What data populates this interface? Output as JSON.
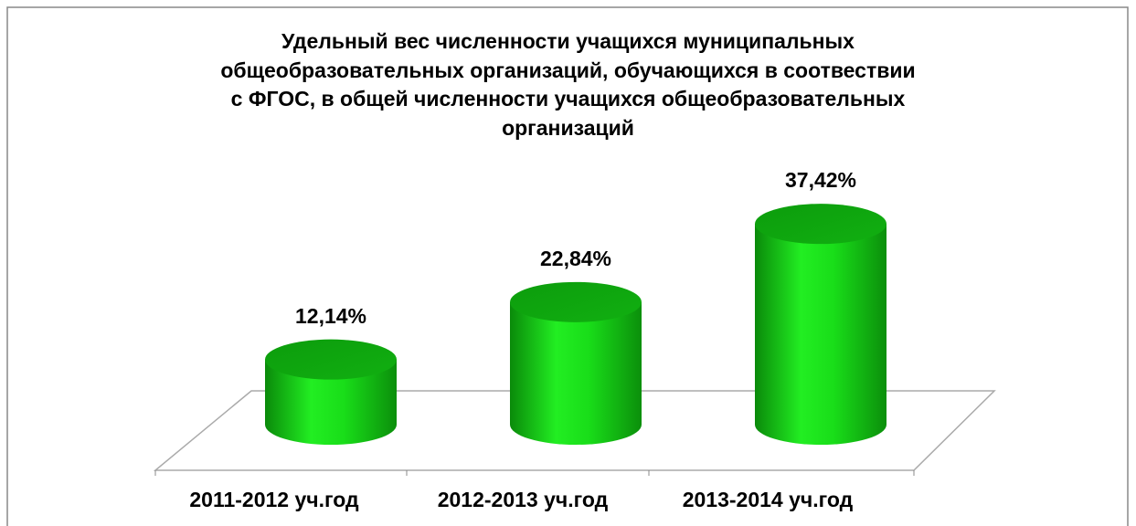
{
  "chart_data": {
    "type": "bar3d-cylinder",
    "title": "Удельный вес численности учащихся муниципальных\nобщеобразовательных организаций, обучающихся в соотвествии\nс ФГОС, в общей численности учащихся общеобразовательных\nорганизаций",
    "categories": [
      "2011-2012 уч.год",
      "2012-2013 уч.год",
      "2013-2014 уч.год"
    ],
    "values": [
      12.14,
      22.84,
      37.42
    ],
    "value_labels": [
      "12,14%",
      "22,84%",
      "37,42%"
    ],
    "color": "#00dd00",
    "ylim": [
      0,
      40
    ]
  }
}
